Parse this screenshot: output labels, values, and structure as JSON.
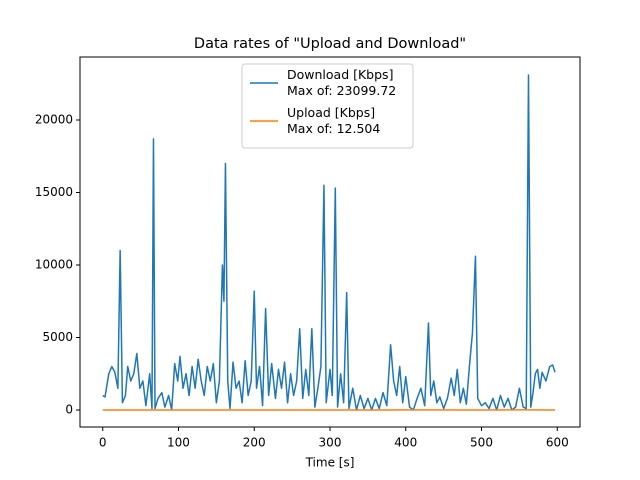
{
  "chart_data": {
    "type": "line",
    "title": "Data rates of \"Upload and Download\"",
    "x_label": "Time [s]",
    "xlim": [
      -30,
      630
    ],
    "ylim": [
      -1172,
      24345
    ],
    "xticks": [
      0,
      100,
      200,
      300,
      400,
      500,
      600
    ],
    "yticks": [
      0,
      5000,
      10000,
      15000,
      20000
    ],
    "legend": "upper center",
    "series": [
      {
        "name": "Download [Kbps]\nMax of: 23099.72",
        "color": "#1f77b4",
        "x": [
          0,
          3,
          8,
          12,
          16,
          20,
          23,
          26,
          30,
          33,
          37,
          41,
          45,
          49,
          53,
          57,
          62,
          65,
          67,
          69,
          73,
          78,
          82,
          87,
          91,
          95,
          99,
          102,
          106,
          110,
          114,
          118,
          122,
          126,
          130,
          134,
          138,
          142,
          146,
          150,
          154,
          158,
          160,
          162,
          165,
          168,
          172,
          176,
          180,
          184,
          188,
          192,
          196,
          200,
          203,
          207,
          211,
          215,
          219,
          223,
          228,
          232,
          236,
          240,
          244,
          248,
          252,
          256,
          260,
          264,
          268,
          272,
          276,
          280,
          284,
          288,
          292,
          295,
          300,
          303,
          307,
          310,
          314,
          318,
          322,
          325,
          330,
          335,
          340,
          345,
          350,
          355,
          360,
          365,
          370,
          375,
          380,
          384,
          388,
          392,
          396,
          400,
          405,
          410,
          415,
          420,
          425,
          430,
          433,
          437,
          441,
          445,
          450,
          455,
          460,
          464,
          468,
          472,
          476,
          480,
          484,
          488,
          492,
          495,
          500,
          505,
          510,
          515,
          520,
          525,
          530,
          535,
          540,
          545,
          550,
          555,
          559,
          562,
          565,
          568,
          571,
          574,
          577,
          580,
          585,
          590,
          594,
          597
        ],
        "values": [
          1000,
          900,
          2500,
          3000,
          2600,
          1500,
          11000,
          500,
          1000,
          3000,
          2000,
          2500,
          3900,
          1500,
          2000,
          300,
          2500,
          100,
          18700,
          100,
          800,
          1200,
          200,
          1000,
          0,
          3200,
          2000,
          3700,
          1500,
          2500,
          1000,
          3000,
          1500,
          3500,
          2000,
          1000,
          3000,
          2000,
          3200,
          500,
          2000,
          10000,
          7500,
          17000,
          2000,
          100,
          3300,
          1500,
          2000,
          500,
          3400,
          1000,
          2000,
          8200,
          1500,
          3000,
          300,
          7000,
          1000,
          3200,
          800,
          2800,
          1500,
          3300,
          500,
          2500,
          1000,
          2000,
          5600,
          800,
          2800,
          1000,
          5600,
          200,
          1500,
          3000,
          15500,
          500,
          2800,
          1000,
          15300,
          200,
          2500,
          500,
          8100,
          100,
          1500,
          0,
          1000,
          100,
          800,
          0,
          800,
          100,
          1200,
          300,
          4500,
          2000,
          1000,
          3000,
          500,
          2300,
          200,
          0,
          800,
          1500,
          300,
          6000,
          1000,
          2000,
          500,
          900,
          100,
          800,
          2200,
          1000,
          2800,
          500,
          1500,
          400,
          3000,
          5300,
          10600,
          800,
          300,
          500,
          100,
          800,
          0,
          1000,
          200,
          800,
          0,
          200,
          1500,
          200,
          100,
          23099.72,
          200,
          1200,
          2500,
          2800,
          1500,
          2600,
          2000,
          3000,
          3100,
          2600
        ]
      },
      {
        "name": "Upload [Kbps]\nMax of: 12.504",
        "color": "#ff7f0e",
        "x": [
          0,
          100,
          200,
          300,
          400,
          500,
          562,
          597
        ],
        "values": [
          2,
          3,
          4,
          3,
          5,
          2,
          12.504,
          3
        ]
      }
    ]
  }
}
